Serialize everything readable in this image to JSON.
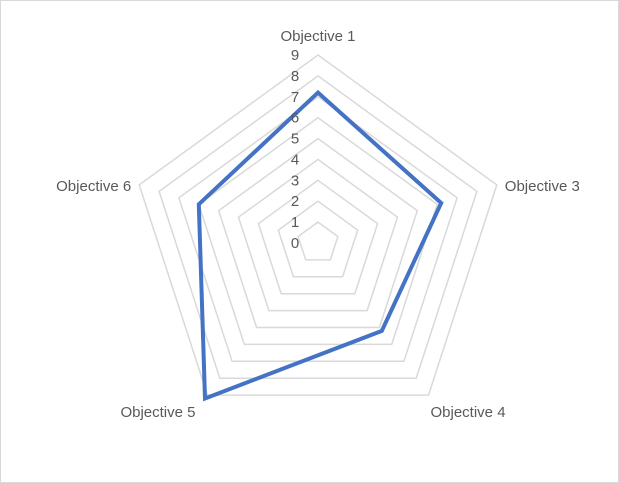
{
  "chart_data": {
    "type": "radar",
    "categories": [
      "Objective 1",
      "Objective 3",
      "Objective 4",
      "Objective 5",
      "Objective 6"
    ],
    "series": [
      {
        "values": [
          7.2,
          6.2,
          5.2,
          9.2,
          6.0
        ]
      }
    ],
    "rlim": [
      0,
      9
    ],
    "ticks": [
      "0",
      "1",
      "2",
      "3",
      "4",
      "5",
      "6",
      "7",
      "8",
      "9"
    ],
    "grid": true,
    "legend": "none",
    "colors": {
      "series": "#4472c4",
      "grid": "#d9d9d9",
      "text": "#595959"
    }
  }
}
